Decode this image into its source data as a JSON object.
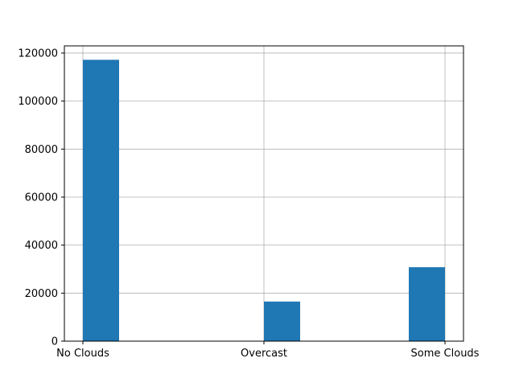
{
  "chart_data": {
    "type": "bar",
    "title": "",
    "xlabel": "",
    "ylabel": "",
    "categories": [
      "No Clouds",
      "Overcast",
      "Some Clouds"
    ],
    "values": [
      117200,
      16500,
      30800
    ],
    "ylim": [
      0,
      123000
    ],
    "yticks": [
      0,
      20000,
      40000,
      60000,
      80000,
      100000,
      120000
    ],
    "ytick_labels": [
      "0",
      "20000",
      "40000",
      "60000",
      "80000",
      "100000",
      "120000"
    ],
    "grid": true,
    "bar_color": "#1f77b4"
  }
}
